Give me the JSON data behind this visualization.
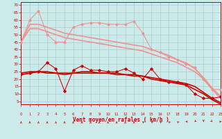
{
  "bg_color": "#cceaea",
  "grid_color": "#aacccc",
  "xlabel": "Vent moyen/en rafales ( km/h )",
  "xlim": [
    0,
    23
  ],
  "ylim": [
    3,
    72
  ],
  "yticks": [
    5,
    10,
    15,
    20,
    25,
    30,
    35,
    40,
    45,
    50,
    55,
    60,
    65,
    70
  ],
  "xticks": [
    0,
    1,
    2,
    3,
    4,
    5,
    6,
    7,
    8,
    9,
    10,
    11,
    12,
    13,
    14,
    15,
    16,
    17,
    18,
    19,
    20,
    21,
    22,
    23
  ],
  "x": [
    0,
    1,
    2,
    3,
    4,
    5,
    6,
    7,
    8,
    9,
    10,
    11,
    12,
    13,
    14,
    15,
    16,
    17,
    18,
    19,
    20,
    21,
    22,
    23
  ],
  "rafales_raw": [
    45,
    60,
    66,
    50,
    45,
    45,
    55,
    57,
    58,
    58,
    57,
    57,
    57,
    59,
    51,
    40,
    38,
    35,
    33,
    30,
    28,
    20,
    13,
    13
  ],
  "rafales_trend1": [
    45,
    54,
    54,
    52,
    50,
    48,
    47,
    46,
    45,
    44,
    43,
    42,
    41,
    40,
    39,
    37,
    35,
    33,
    31,
    28,
    25,
    20,
    13,
    7
  ],
  "rafales_trend2": [
    45,
    57,
    57,
    55,
    53,
    51,
    50,
    49,
    48,
    47,
    46,
    45,
    44,
    43,
    42,
    40,
    38,
    36,
    33,
    31,
    27,
    21,
    14,
    8
  ],
  "vent_raw": [
    23,
    24,
    25,
    31,
    27,
    12,
    26,
    29,
    26,
    26,
    25,
    25,
    27,
    24,
    20,
    27,
    20,
    18,
    18,
    16,
    10,
    7,
    7,
    8
  ],
  "vent_trend1": [
    24,
    25,
    25,
    25,
    24,
    24,
    24,
    25,
    25,
    24,
    24,
    24,
    23,
    23,
    22,
    21,
    20,
    19,
    18,
    17,
    15,
    11,
    7,
    4
  ],
  "vent_trend2": [
    23,
    24,
    25,
    24,
    24,
    23,
    24,
    24,
    24,
    24,
    24,
    23,
    23,
    22,
    22,
    20,
    19,
    18,
    17,
    16,
    13,
    10,
    6,
    3
  ],
  "color_light": "#f09090",
  "color_dark": "#cc0000",
  "wind_dirs": [
    180,
    180,
    180,
    180,
    180,
    180,
    180,
    180,
    180,
    180,
    180,
    180,
    180,
    180,
    225,
    225,
    225,
    225,
    225,
    270,
    315,
    0,
    45,
    90
  ]
}
